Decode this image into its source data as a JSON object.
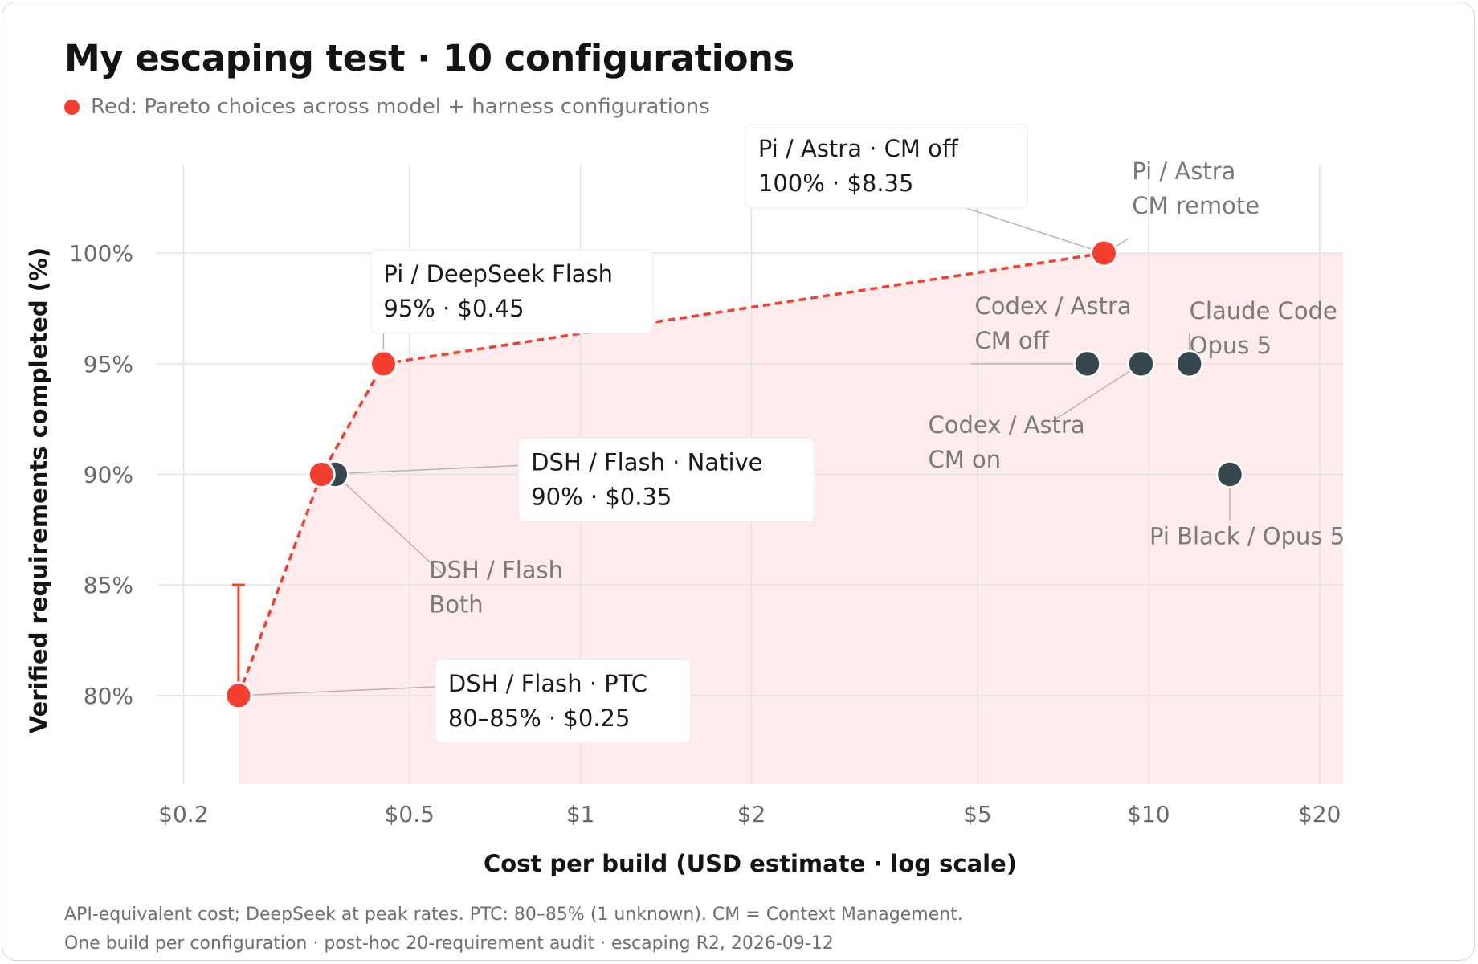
{
  "header": {
    "title": "My escaping test · 10 configurations",
    "legend_text": "Red: Pareto choices across model + harness configurations"
  },
  "footer": {
    "line1": "API-equivalent cost; DeepSeek at peak rates. PTC: 80–85% (1 unknown). CM = Context Management.",
    "line2": "One build per configuration · post-hoc 20-requirement audit · escaping R2, 2026-09-12"
  },
  "colors": {
    "pareto": "#f43f2f",
    "other": "#36474f",
    "region": "#fdeceb",
    "grid": "#e3e3e3",
    "leader": "#b5b5b5"
  },
  "chart_data": {
    "type": "scatter",
    "xlabel": "Cost per build (USD estimate · log scale)",
    "ylabel": "Verified requirements completed (%)",
    "x_scale": "log",
    "xlim": [
      0.18,
      22
    ],
    "ylim": [
      76,
      104
    ],
    "x_ticks": [
      {
        "value": 0.2,
        "label": "$0.2"
      },
      {
        "value": 0.5,
        "label": "$0.5"
      },
      {
        "value": 1,
        "label": "$1"
      },
      {
        "value": 2,
        "label": "$2"
      },
      {
        "value": 5,
        "label": "$5"
      },
      {
        "value": 10,
        "label": "$10"
      },
      {
        "value": 20,
        "label": "$20"
      }
    ],
    "y_ticks": [
      {
        "value": 80,
        "label": "80%"
      },
      {
        "value": 85,
        "label": "85%"
      },
      {
        "value": 90,
        "label": "90%"
      },
      {
        "value": 95,
        "label": "95%"
      },
      {
        "value": 100,
        "label": "100%"
      }
    ],
    "pareto_frontier": [
      [
        0.25,
        80
      ],
      [
        0.35,
        90
      ],
      [
        0.45,
        95
      ],
      [
        8.35,
        100
      ]
    ],
    "points": [
      {
        "x": 0.25,
        "y": 80,
        "pareto": true,
        "range": [
          80,
          85
        ],
        "label_lines": [
          "DSH / Flash · PTC",
          "80–85% · $0.25"
        ],
        "style": "box",
        "dir": "right"
      },
      {
        "x": 0.37,
        "y": 90,
        "pareto": false,
        "label_lines": [
          "DSH / Flash",
          "Both"
        ],
        "style": "plain",
        "dir": "down-right"
      },
      {
        "x": 0.35,
        "y": 90,
        "pareto": true,
        "label_lines": [
          "DSH / Flash · Native",
          "90% · $0.35"
        ],
        "style": "box",
        "dir": "right"
      },
      {
        "x": 0.45,
        "y": 95,
        "pareto": true,
        "label_lines": [
          "Pi / DeepSeek Flash",
          "95% · $0.45"
        ],
        "style": "box",
        "dir": "up"
      },
      {
        "x": 7.8,
        "y": 95,
        "pareto": false,
        "label_lines": [
          "Codex / Astra",
          "CM off"
        ],
        "style": "plain",
        "dir": "left"
      },
      {
        "x": 9.7,
        "y": 95,
        "pareto": false,
        "label_lines": [
          "Codex / Astra",
          "CM on"
        ],
        "style": "plain",
        "dir": "down-left"
      },
      {
        "x": 11.8,
        "y": 95,
        "pareto": false,
        "label_lines": [
          "Claude Code",
          "Opus 5"
        ],
        "style": "plain",
        "dir": "up"
      },
      {
        "x": 13.9,
        "y": 90,
        "pareto": false,
        "label_lines": [
          "Pi Black / Opus 5"
        ],
        "style": "plain",
        "dir": "down"
      },
      {
        "x": 8.35,
        "y": 100,
        "pareto": true,
        "label_lines": [
          "Pi / Astra · CM off",
          "100% · $8.35"
        ],
        "style": "box",
        "dir": "up-left"
      },
      {
        "x": 8.4,
        "y": 100,
        "pareto": false,
        "label_lines": [
          "Pi / Astra",
          "CM remote"
        ],
        "style": "plain",
        "dir": "up-right"
      }
    ]
  }
}
